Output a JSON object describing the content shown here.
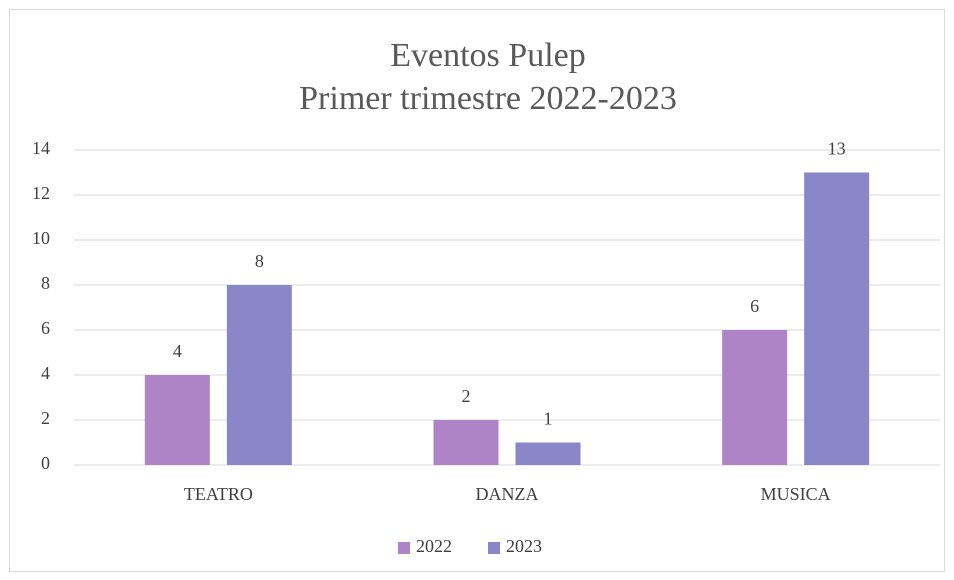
{
  "chart_data": {
    "type": "bar",
    "title": [
      "Eventos Pulep",
      "Primer trimestre 2022-2023"
    ],
    "categories": [
      "TEATRO",
      "DANZA",
      "MUSICA"
    ],
    "series": [
      {
        "name": "2022",
        "color": "#ae84c6",
        "values": [
          4,
          2,
          6
        ]
      },
      {
        "name": "2023",
        "color": "#8a86c8",
        "values": [
          8,
          1,
          13
        ]
      }
    ],
    "ylim": [
      0,
      14
    ],
    "yticks": [
      0,
      2,
      4,
      6,
      8,
      10,
      12,
      14
    ],
    "grid": true,
    "legend": "bottom"
  }
}
